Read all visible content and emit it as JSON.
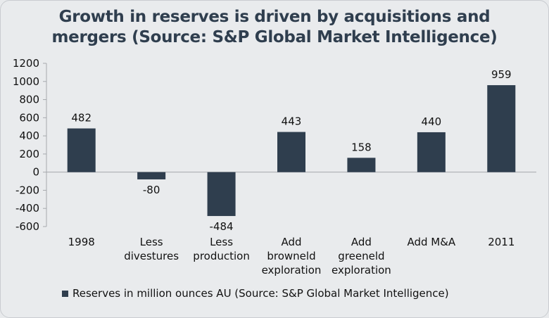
{
  "chart_data": {
    "type": "bar",
    "title": "Growth in reserves is driven by acquisitions and mergers (Source: S&P Global Market Intelligence)",
    "categories": [
      [
        "1998"
      ],
      [
        "Less",
        "divestures"
      ],
      [
        "Less",
        "production"
      ],
      [
        "Add",
        "browneld",
        "exploration"
      ],
      [
        "Add",
        "greeneld",
        "exploration"
      ],
      [
        "Add M&A"
      ],
      [
        "2011"
      ]
    ],
    "series": [
      {
        "name": "Reserves in million ounces AU (Source: S&P Global Market Intelligence)",
        "values": [
          482,
          -80,
          -484,
          443,
          158,
          440,
          959
        ]
      }
    ],
    "data_labels": [
      "482",
      "-80",
      "-484",
      "443",
      "158",
      "440",
      "959"
    ],
    "yticks": [
      1200,
      1000,
      800,
      600,
      400,
      200,
      0,
      -200,
      -400,
      -600
    ],
    "ylim": [
      -600,
      1200
    ],
    "grid": false,
    "legend_position": "bottom",
    "bar_color": "#2f3e4e"
  }
}
